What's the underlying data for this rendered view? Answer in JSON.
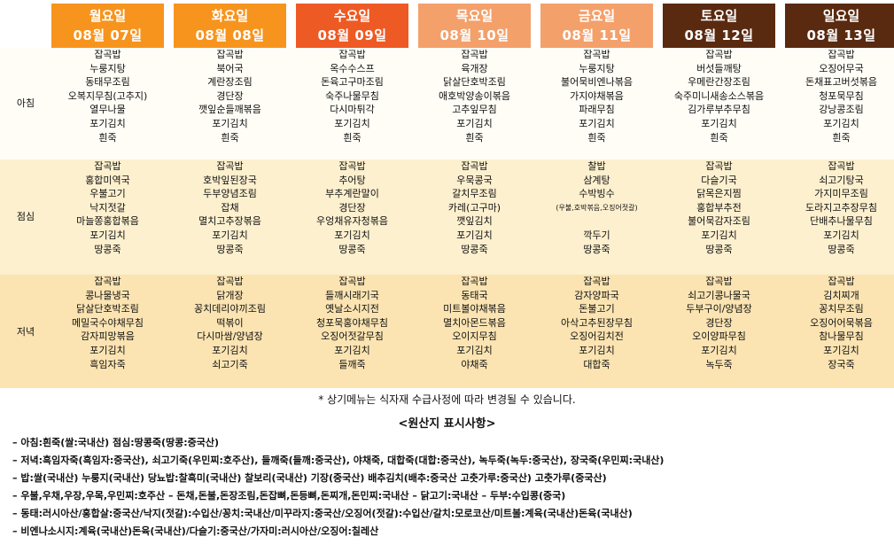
{
  "days": [
    {
      "day": "월요일",
      "date": "08월 07일",
      "color": "#f7941d",
      "breakfast": [
        "잡곡밥",
        "누룽지탕",
        "동태무조림",
        "오복지무침(고추지)",
        "열무나물",
        "포기김치",
        "흰죽"
      ],
      "lunch": [
        "잡곡밥",
        "홍합미역국",
        "우불고기",
        "낙지젓갈",
        "마늘쫑홍합볶음",
        "포기김치",
        "땅콩죽"
      ],
      "dinner": [
        "잡곡밥",
        "콩나물냉국",
        "닭살단호박조림",
        "메밀국수야채무침",
        "감자피망볶음",
        "포기김치",
        "흑임자죽"
      ]
    },
    {
      "day": "화요일",
      "date": "08월 08일",
      "color": "#f7941d",
      "breakfast": [
        "잡곡밥",
        "북어국",
        "계란장조림",
        "경단장",
        "깻잎순들깨볶음",
        "포기김치",
        "흰죽"
      ],
      "lunch": [
        "잡곡밥",
        "호박잎된장국",
        "두부양념조림",
        "잡채",
        "멸치고추장볶음",
        "포기김치",
        "땅콩죽"
      ],
      "dinner": [
        "잡곡밥",
        "닭개장",
        "꽁치데리야끼조림",
        "떡볶이",
        "다시마쌈/양념장",
        "포기김치",
        "쇠고기죽"
      ]
    },
    {
      "day": "수요일",
      "date": "08월 09일",
      "color": "#ee5a24",
      "breakfast": [
        "잡곡밥",
        "옥수수스프",
        "돈육고구마조림",
        "숙주나물무침",
        "다시마튀각",
        "포기김치",
        "흰죽"
      ],
      "lunch": [
        "잡곡밥",
        "추어탕",
        "부추계란말이",
        "경단장",
        "우엉채유자청볶음",
        "포기김치",
        "땅콩죽"
      ],
      "dinner": [
        "잡곡밥",
        "들깨시래기국",
        "옛날소시지전",
        "청포묵홍야채무침",
        "오징어젓갈무침",
        "포기김치",
        "들깨죽"
      ]
    },
    {
      "day": "목요일",
      "date": "08월 10일",
      "color": "#f4a06b",
      "breakfast": [
        "잡곡밥",
        "육개장",
        "닭살단호박조림",
        "애호박양송이볶음",
        "고추잎무침",
        "포기김치",
        "흰죽"
      ],
      "lunch": [
        "잡곡밥",
        "우묵콩국",
        "갈치무조림",
        "카레(고구마)",
        "깻잎김치",
        "포기김치",
        "땅콩죽"
      ],
      "dinner": [
        "잡곡밥",
        "동태국",
        "미트볼야채볶음",
        "멸치아몬드볶음",
        "오이지무침",
        "포기김치",
        "야채죽"
      ]
    },
    {
      "day": "금요일",
      "date": "08월 11일",
      "color": "#f4a06b",
      "breakfast": [
        "잡곡밥",
        "누룽지탕",
        "불어묵비엔나볶음",
        "가지야채볶음",
        "파래무침",
        "포기김치",
        "흰죽"
      ],
      "lunch": [
        "찰밥",
        "삼계탕",
        "수박빙수",
        "(우불,호박볶음,오징어젓갈)",
        "",
        "깍두기",
        "땅콩죽"
      ],
      "dinner": [
        "잡곡밥",
        "감자양파국",
        "돈불고기",
        "아삭고추된장무침",
        "오징어김치전",
        "포기김치",
        "대합죽"
      ]
    },
    {
      "day": "토요일",
      "date": "08월 12일",
      "color": "#5a2a10",
      "breakfast": [
        "잡곡밥",
        "버섯들깨탕",
        "우메란간장조림",
        "숙주미니새송소스볶음",
        "김가루부추무침",
        "포기김치",
        "흰죽"
      ],
      "lunch": [
        "잡곡밥",
        "다슬기국",
        "닭목은지찜",
        "홍합부추전",
        "불어묵감자조림",
        "포기김치",
        "땅콩죽"
      ],
      "dinner": [
        "잡곡밥",
        "쇠고기콩나물국",
        "두부구이/양념장",
        "경단장",
        "오이양파무침",
        "포기김치",
        "녹두죽"
      ]
    },
    {
      "day": "일요일",
      "date": "08월 13일",
      "color": "#5a2a10",
      "breakfast": [
        "잡곡밥",
        "오징어무국",
        "돈채표고버섯볶음",
        "청포묵무침",
        "강낭콩조림",
        "포기김치",
        "흰죽"
      ],
      "lunch": [
        "잡곡밥",
        "쇠고기탕국",
        "가지미무조림",
        "도라지고추장무침",
        "단배추나물무침",
        "포기김치",
        "땅콩죽"
      ],
      "dinner": [
        "잡곡밥",
        "김치찌개",
        "꽁치무조림",
        "오징어어묵볶음",
        "참나물무침",
        "포기김치",
        "장국죽"
      ]
    }
  ],
  "meal_labels": {
    "breakfast": "아침",
    "lunch": "점심",
    "dinner": "저녁"
  },
  "note": "* 상기메뉴는 식자재 수급사정에 따라 변경될 수 있습니다.",
  "origin_title": "<원산지 표시사항>",
  "origin_lines": [
    "– 아침:흰죽(쌀:국내산) 점심:땅콩죽(땅콩:중국산)",
    "– 저녁:흑임자죽(흑임자:중국산), 쇠고기죽(우민찌:호주산), 들깨죽(들깨:중국산), 야채죽, 대합죽(대합:중국산), 녹두죽(녹두:중국산), 장국죽(우민찌:국내산)",
    "– 밥:쌀(국내산) 누룽지(국내산) 당뇨밥:찰흑미(국내산) 찰보리(국내산) 기장(중국산) 배추김치(배추:중국산 고춧가루:중국산) 고춧가루(중국산)",
    "– 우불,우채,우장,우목,우민찌:호주산  – 돈채,돈불,돈장조림,돈잡뼈,돈등뼈,돈찌개,돈민찌:국내산  – 닭고기:국내산  – 두부:수입콩(중국)",
    "– 동태:러시아산/홍합살:중국산/낙지(젓갈):수입산/꽁치:국내산/미꾸라지:중국산/오징어(젓갈):수입산/갈치:모로코산/미트볼:계육(국내산)돈육(국내산)",
    "– 비엔나소시지:계육(국내산)돈육(국내산)/다슬기:중국산/가자미:러시아산/오징어:칠레산"
  ]
}
